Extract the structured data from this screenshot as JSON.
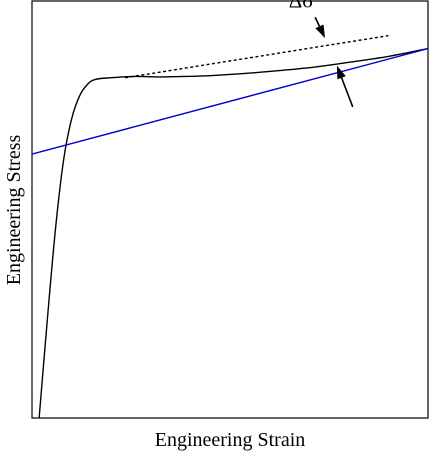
{
  "chart_data": {
    "type": "line",
    "title": "",
    "xlabel": "Engineering Strain",
    "ylabel": "Engineering Stress",
    "xlim": [
      0,
      1
    ],
    "ylim": [
      0,
      1
    ],
    "ticks": false,
    "grid": false,
    "legend": null,
    "series": [
      {
        "style": "solid",
        "color": "#000000",
        "points": [
          [
            0.018,
            0.0
          ],
          [
            0.04,
            0.25
          ],
          [
            0.06,
            0.46
          ],
          [
            0.08,
            0.62
          ],
          [
            0.1,
            0.717
          ],
          [
            0.12,
            0.772
          ],
          [
            0.14,
            0.8
          ],
          [
            0.16,
            0.812
          ],
          [
            0.2,
            0.816
          ],
          [
            0.26,
            0.819
          ],
          [
            0.32,
            0.818
          ],
          [
            0.38,
            0.819
          ],
          [
            0.45,
            0.821
          ],
          [
            0.52,
            0.825
          ],
          [
            0.6,
            0.831
          ],
          [
            0.7,
            0.84
          ],
          [
            0.8,
            0.853
          ],
          [
            0.9,
            0.867
          ],
          [
            1.0,
            0.886
          ]
        ]
      },
      {
        "style": "solid",
        "color": "#0000cc",
        "points": [
          [
            0.0,
            0.633
          ],
          [
            1.0,
            0.886
          ]
        ]
      },
      {
        "style": "dashed",
        "color": "#000000",
        "points": [
          [
            0.235,
            0.816
          ],
          [
            0.9,
            0.917
          ]
        ]
      }
    ],
    "annotations": [
      {
        "text": "Δσ",
        "arrow_to": [
          0.74,
          0.911
        ],
        "arrow_from": [
          0.715,
          0.961
        ]
      },
      {
        "text": "",
        "arrow_to": [
          0.77,
          0.845
        ],
        "arrow_from": [
          0.81,
          0.746
        ]
      }
    ]
  }
}
